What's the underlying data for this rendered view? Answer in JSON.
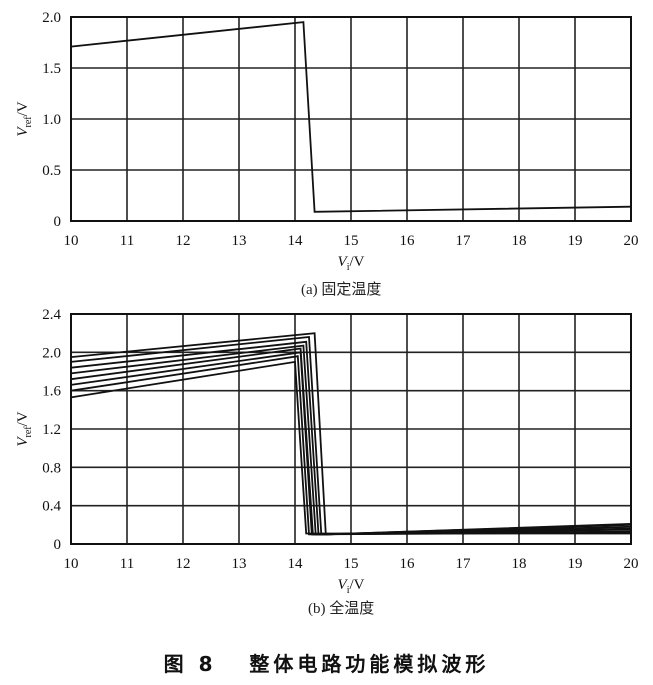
{
  "figure_title": "图 8   整体电路功能模拟波形",
  "chart_data": [
    {
      "type": "line",
      "caption": "(a) 固定温度",
      "xlabel": "V_i/V",
      "ylabel": "V_ref/V",
      "xlim": [
        10,
        20
      ],
      "ylim": [
        0,
        2.0
      ],
      "xticks": [
        "10",
        "11",
        "12",
        "13",
        "14",
        "15",
        "16",
        "17",
        "18",
        "19",
        "20"
      ],
      "yticks": [
        "0",
        "0.5",
        "1.0",
        "1.5",
        "2.0"
      ],
      "grid": true,
      "series": [
        {
          "x": [
            10,
            14.15,
            14.35,
            20
          ],
          "y": [
            1.71,
            1.95,
            0.09,
            0.14
          ]
        }
      ]
    },
    {
      "type": "line",
      "caption": "(b) 全温度",
      "xlabel": "V_i/V",
      "ylabel": "V_ref/V",
      "xlim": [
        10,
        20
      ],
      "ylim": [
        0,
        2.4
      ],
      "xticks": [
        "10",
        "11",
        "12",
        "13",
        "14",
        "15",
        "16",
        "17",
        "18",
        "19",
        "20"
      ],
      "yticks": [
        "0",
        "0.4",
        "0.8",
        "1.2",
        "1.6",
        "2.0",
        "2.4"
      ],
      "grid": true,
      "series": [
        {
          "x": [
            10,
            14.0,
            14.2,
            20
          ],
          "y": [
            1.53,
            1.9,
            0.11,
            0.11
          ]
        },
        {
          "x": [
            10,
            14.05,
            14.25,
            20
          ],
          "y": [
            1.6,
            1.96,
            0.1,
            0.12
          ]
        },
        {
          "x": [
            10,
            14.1,
            14.3,
            20
          ],
          "y": [
            1.66,
            2.0,
            0.1,
            0.13
          ]
        },
        {
          "x": [
            10,
            14.1,
            14.32,
            20
          ],
          "y": [
            1.72,
            2.04,
            0.1,
            0.15
          ]
        },
        {
          "x": [
            10,
            14.15,
            14.37,
            20
          ],
          "y": [
            1.78,
            2.07,
            0.1,
            0.16
          ]
        },
        {
          "x": [
            10,
            14.2,
            14.42,
            20
          ],
          "y": [
            1.84,
            2.11,
            0.1,
            0.18
          ]
        },
        {
          "x": [
            10,
            14.25,
            14.47,
            20
          ],
          "y": [
            1.9,
            2.16,
            0.1,
            0.2
          ]
        },
        {
          "x": [
            10,
            14.35,
            14.55,
            20
          ],
          "y": [
            1.95,
            2.2,
            0.1,
            0.21
          ]
        }
      ]
    }
  ]
}
